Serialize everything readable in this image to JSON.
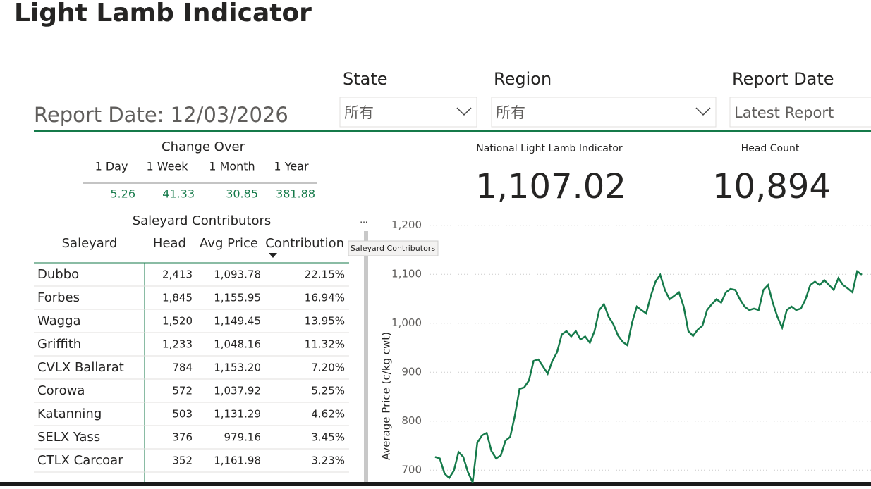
{
  "title": "Light Lamb Indicator",
  "report_date": "Report Date: 12/03/2026",
  "filters": [
    {
      "label": "State",
      "value": "所有"
    },
    {
      "label": "Region",
      "value": "所有"
    },
    {
      "label": "Report Date",
      "value": "Latest Report"
    }
  ],
  "change_over": {
    "title": "Change Over",
    "periods": [
      "1 Day",
      "1 Week",
      "1 Month",
      "1 Year"
    ],
    "values": [
      5.26,
      41.33,
      30.85,
      381.88
    ]
  },
  "kpis": [
    {
      "label": "National Light Lamb Indicator",
      "value": "1,107.02"
    },
    {
      "label": "Head Count",
      "value": "10,894"
    }
  ],
  "table": {
    "title": "Saleyard Contributors",
    "columns": [
      "Saleyard",
      "Head",
      "Avg Price",
      "Contribution"
    ],
    "rows": [
      [
        "Dubbo",
        "2,413",
        "1,093.78",
        "22.15%"
      ],
      [
        "Forbes",
        "1,845",
        "1,155.95",
        "16.94%"
      ],
      [
        "Wagga",
        "1,520",
        "1,149.45",
        "13.95%"
      ],
      [
        "Griffith",
        "1,233",
        "1,048.16",
        "11.32%"
      ],
      [
        "CVLX Ballarat",
        "784",
        "1,153.20",
        "7.20%"
      ],
      [
        "Corowa",
        "572",
        "1,037.92",
        "5.25%"
      ],
      [
        "Katanning",
        "503",
        "1,131.29",
        "4.62%"
      ],
      [
        "SELX Yass",
        "376",
        "979.16",
        "3.45%"
      ],
      [
        "CTLX Carcoar",
        "352",
        "1,161.98",
        "3.23%"
      ]
    ]
  },
  "tooltip": "Saleyard Contributors",
  "chart_data": {
    "type": "line",
    "y_label": "Average Price (c/kg cwt)",
    "color": "#157a4a",
    "ylim": [
      673,
      1214
    ],
    "yticks": [
      700,
      800,
      900,
      {
        "value": 1000,
        "label": "1,000"
      },
      {
        "value": 1100,
        "label": "1,100"
      },
      {
        "value": 1200,
        "label": "1,200"
      }
    ],
    "grid": true,
    "values": [
      727,
      724,
      693,
      684,
      699,
      737,
      727,
      696,
      675,
      756,
      771,
      776,
      739,
      724,
      730,
      760,
      768,
      811,
      866,
      869,
      883,
      923,
      926,
      912,
      897,
      923,
      941,
      977,
      984,
      973,
      984,
      967,
      973,
      960,
      984,
      1027,
      1039,
      1013,
      998,
      975,
      962,
      955,
      1001,
      1034,
      1027,
      1020,
      1056,
      1085,
      1099,
      1068,
      1049,
      1056,
      1063,
      1034,
      984,
      974,
      987,
      995,
      1027,
      1039,
      1049,
      1042,
      1063,
      1070,
      1068,
      1049,
      1034,
      1027,
      1030,
      1027,
      1068,
      1078,
      1042,
      1013,
      991,
      1027,
      1034,
      1027,
      1030,
      1049,
      1078,
      1085,
      1078,
      1088,
      1078,
      1068,
      1092,
      1078,
      1071,
      1063,
      1106,
      1099
    ]
  }
}
